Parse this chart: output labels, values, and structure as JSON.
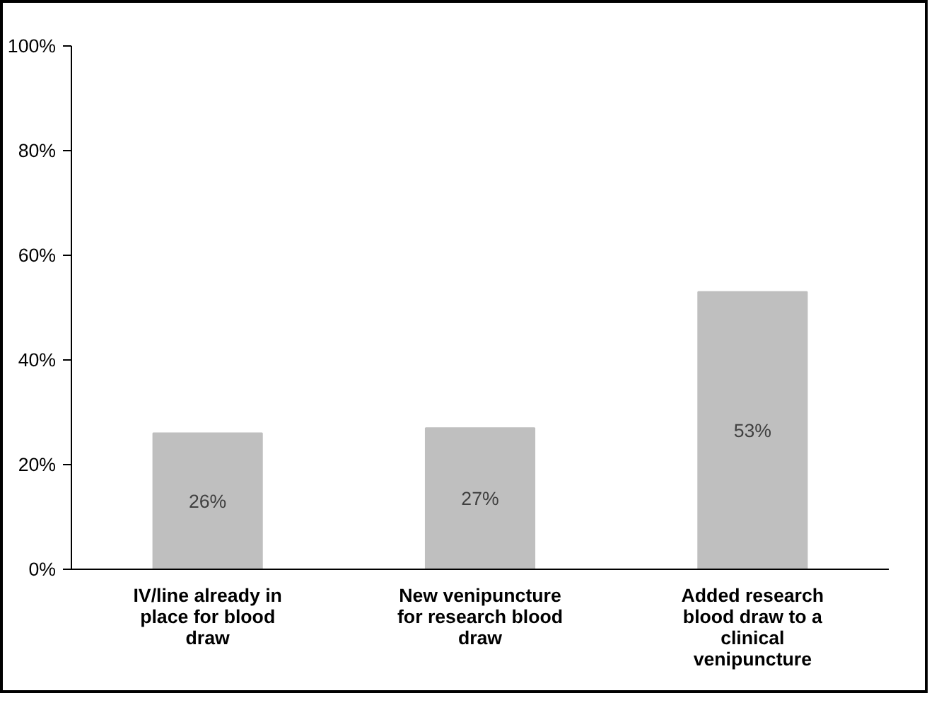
{
  "chart_data": {
    "type": "bar",
    "categories": [
      "IV/line already in place for blood draw",
      "New venipuncture for research blood draw",
      "Added research blood draw to a clinical venipuncture"
    ],
    "values": [
      26,
      27,
      53
    ],
    "color": "#bfbfbf",
    "ylim": [
      0,
      100
    ],
    "yticks": [
      {
        "value": 0,
        "label": "0%"
      },
      {
        "value": 20,
        "label": "20%"
      },
      {
        "value": 40,
        "label": "40%"
      },
      {
        "value": 60,
        "label": "60%"
      },
      {
        "value": 80,
        "label": "80%"
      },
      {
        "value": 100,
        "label": "100%"
      }
    ],
    "value_labels": [
      "26%",
      "27%",
      "53%"
    ],
    "grid": false
  }
}
